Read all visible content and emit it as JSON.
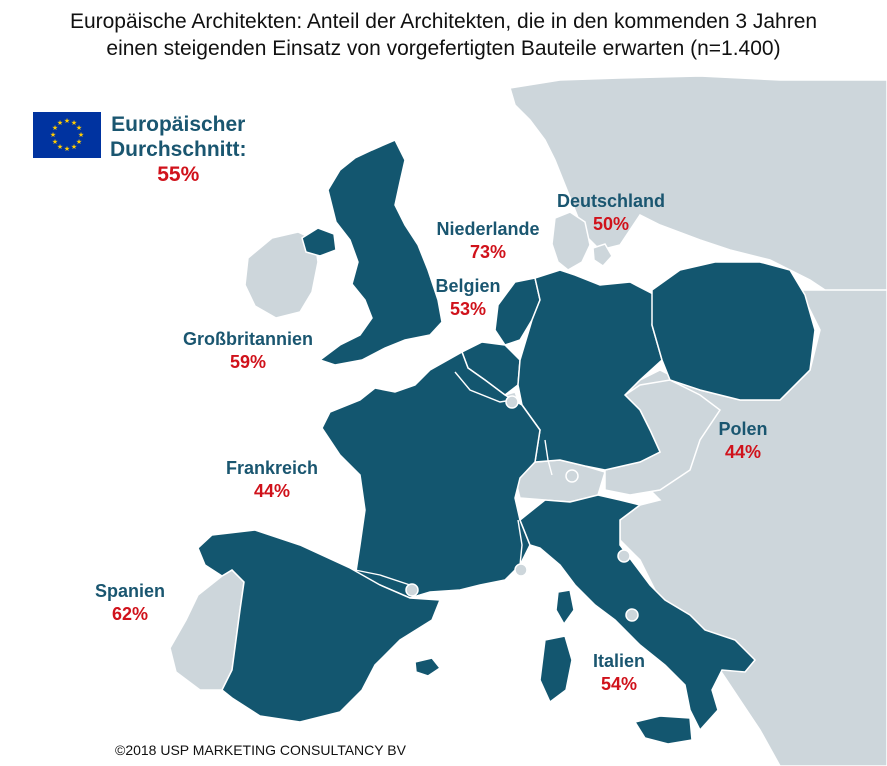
{
  "title_line1": "Europäische Architekten: Anteil der Architekten, die in den kommenden 3 Jahren",
  "title_line2": "einen steigenden Einsatz von vorgefertigten Bauteile erwarten (n=1.400)",
  "eu_average": {
    "line1": "Europäischer",
    "line2": "Durchschnitt:",
    "value": "55%"
  },
  "countries": [
    {
      "name": "Deutschland",
      "value": "50%"
    },
    {
      "name": "Niederlande",
      "value": "73%"
    },
    {
      "name": "Belgien",
      "value": "53%"
    },
    {
      "name": "Großbritannien",
      "value": "59%"
    },
    {
      "name": "Frankreich",
      "value": "44%"
    },
    {
      "name": "Spanien",
      "value": "62%"
    },
    {
      "name": "Italien",
      "value": "54%"
    },
    {
      "name": "Polen",
      "value": "44%"
    }
  ],
  "copyright": "©2018 USP MARKETING CONSULTANCY BV",
  "colors": {
    "highlighted": "#13566f",
    "other_land": "#cdd6db",
    "label": "#1a5670",
    "value": "#d0121b",
    "flag_blue": "#0033a0",
    "flag_stars": "#ffcc00"
  }
}
